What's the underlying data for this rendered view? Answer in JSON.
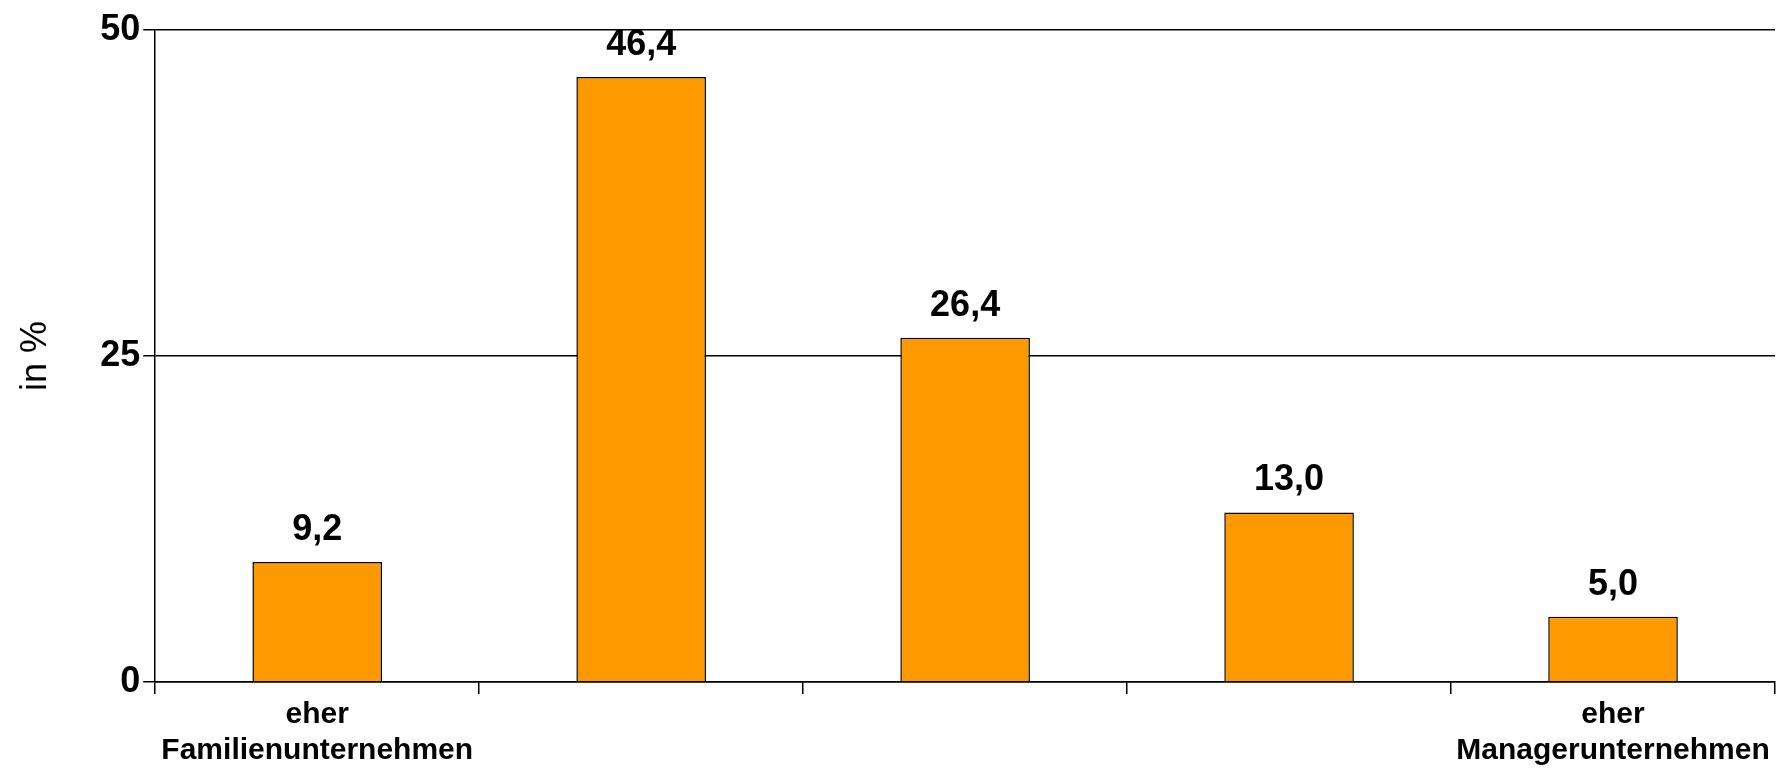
{
  "chart_data": {
    "type": "bar",
    "ylabel": "in %",
    "categories": [
      "eher Familienunternehmen",
      null,
      null,
      null,
      "eher Managerunternehmen"
    ],
    "values": [
      9.2,
      46.4,
      26.4,
      13.0,
      5.0
    ],
    "color": "#ff9900",
    "value_labels": [
      "9,2",
      "46,4",
      "26,4",
      "13,0",
      "5,0"
    ],
    "ylim": [
      0,
      50
    ],
    "yticks": [
      0,
      25,
      50
    ],
    "grid": "y",
    "legend": false
  }
}
